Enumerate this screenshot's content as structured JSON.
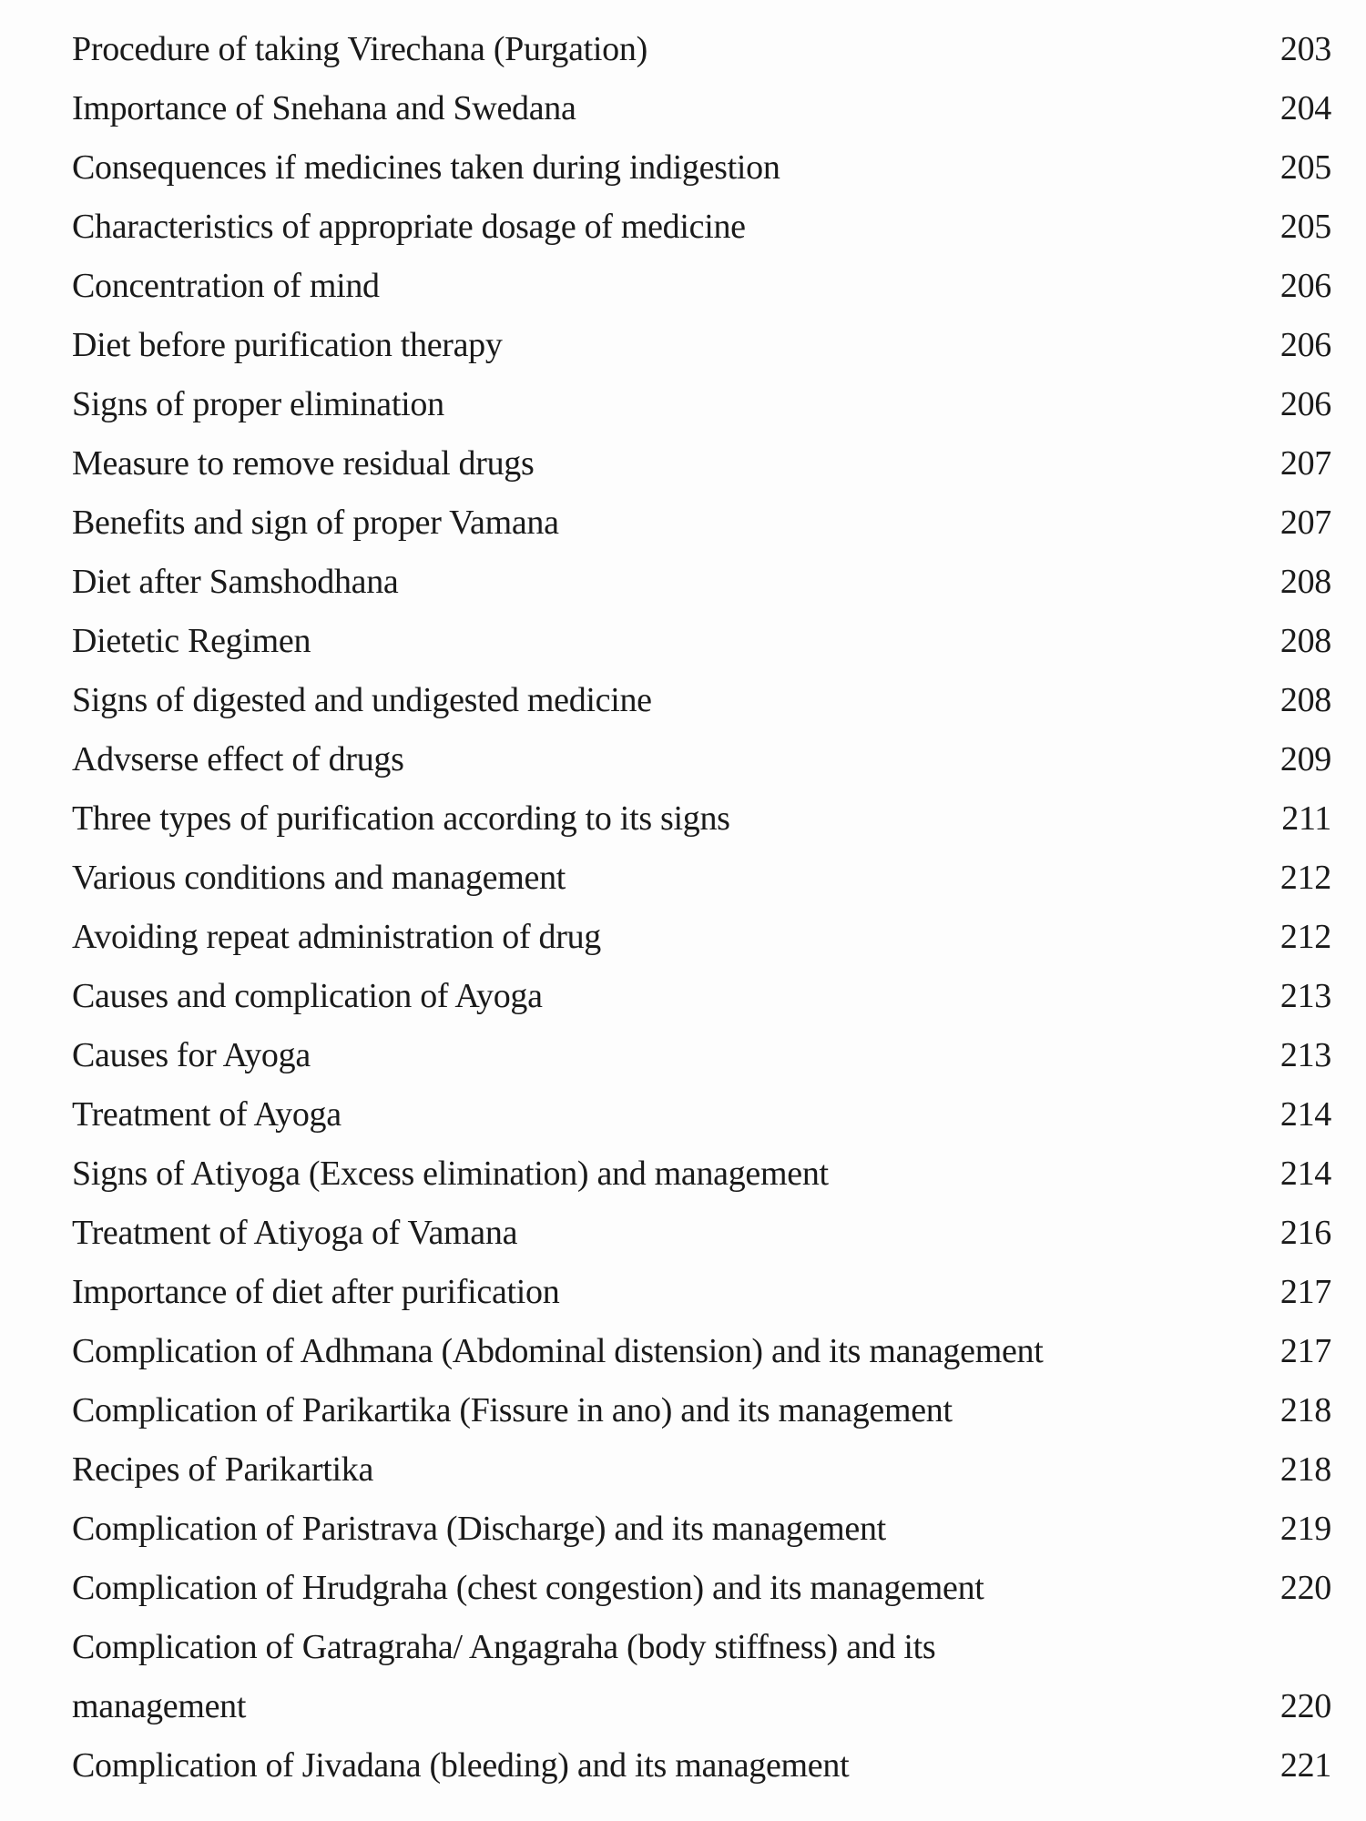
{
  "toc": {
    "entries": [
      {
        "title": "Procedure of taking Virechana (Purgation)",
        "page": "203"
      },
      {
        "title": "Importance of Snehana and Swedana",
        "page": "204"
      },
      {
        "title": "Consequences if medicines taken during indigestion",
        "page": "205"
      },
      {
        "title": "Characteristics of appropriate dosage of medicine",
        "page": "205"
      },
      {
        "title": "Concentration of mind",
        "page": "206"
      },
      {
        "title": "Diet before purification therapy",
        "page": "206"
      },
      {
        "title": "Signs of proper elimination",
        "page": "206"
      },
      {
        "title": "Measure to remove residual drugs",
        "page": "207"
      },
      {
        "title": "Benefits and sign of proper Vamana",
        "page": "207"
      },
      {
        "title": "Diet after Samshodhana",
        "page": "208"
      },
      {
        "title": "Dietetic Regimen",
        "page": "208"
      },
      {
        "title": "Signs of digested and undigested medicine",
        "page": "208"
      },
      {
        "title": "Advserse effect of drugs",
        "page": "209"
      },
      {
        "title": "Three types of purification according to its signs",
        "page": "211"
      },
      {
        "title": "Various conditions and management",
        "page": "212"
      },
      {
        "title": "Avoiding repeat administration of drug",
        "page": "212"
      },
      {
        "title": "Causes and complication of Ayoga",
        "page": "213"
      },
      {
        "title": "Causes for Ayoga",
        "page": "213"
      },
      {
        "title": "Treatment of Ayoga",
        "page": "214"
      },
      {
        "title": "Signs of Atiyoga (Excess elimination) and management",
        "page": "214"
      },
      {
        "title": "Treatment of Atiyoga of Vamana",
        "page": "216"
      },
      {
        "title": "Importance of diet after purification",
        "page": "217"
      },
      {
        "title": "Complication of Adhmana (Abdominal distension) and its management",
        "page": "217"
      },
      {
        "title": "Complication of Parikartika (Fissure in ano) and its management",
        "page": "218"
      },
      {
        "title": "Recipes of Parikartika",
        "page": "218"
      },
      {
        "title": "Complication of Paristrava (Discharge) and its management",
        "page": "219"
      },
      {
        "title": "Complication of Hrudgraha (chest congestion) and its management",
        "page": "220"
      },
      {
        "title": "Complication of Gatragraha/ Angagraha (body stiffness) and its",
        "title_cont": "management",
        "page": "220"
      },
      {
        "title": "Complication of Jivadana (bleeding) and its management",
        "page": "221"
      }
    ]
  }
}
